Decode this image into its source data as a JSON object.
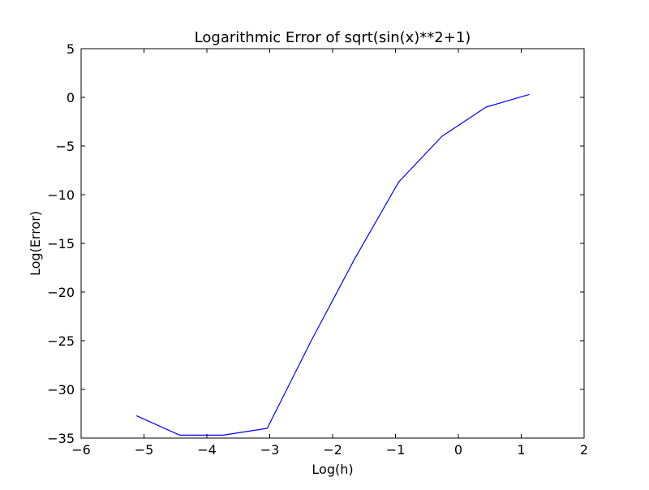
{
  "chart_data": {
    "type": "line",
    "title": "Logarithmic Error of sqrt(sin(x)**2+1)",
    "xlabel": "Log(h)",
    "ylabel": "Log(Error)",
    "xlim": [
      -6,
      2
    ],
    "ylim": [
      -35,
      5
    ],
    "xticks": [
      -6,
      -5,
      -4,
      -3,
      -2,
      -1,
      0,
      1,
      2
    ],
    "yticks": [
      -35,
      -30,
      -25,
      -20,
      -15,
      -10,
      -5,
      0,
      5
    ],
    "xtick_labels": [
      "−6",
      "−5",
      "−4",
      "−3",
      "−2",
      "−1",
      "0",
      "1",
      "2"
    ],
    "ytick_labels": [
      "−35",
      "−30",
      "−25",
      "−20",
      "−15",
      "−10",
      "−5",
      "0",
      "5"
    ],
    "grid": false,
    "legend": "none",
    "series": [
      {
        "color": "#0000ff",
        "x": [
          -5.12,
          -4.43,
          -3.74,
          -3.04,
          -2.34,
          -1.65,
          -0.95,
          -0.26,
          0.44,
          1.13
        ],
        "y": [
          -32.7,
          -34.7,
          -34.7,
          -34.0,
          -25.0,
          -16.6,
          -8.7,
          -4.0,
          -1.0,
          0.3
        ]
      }
    ]
  }
}
